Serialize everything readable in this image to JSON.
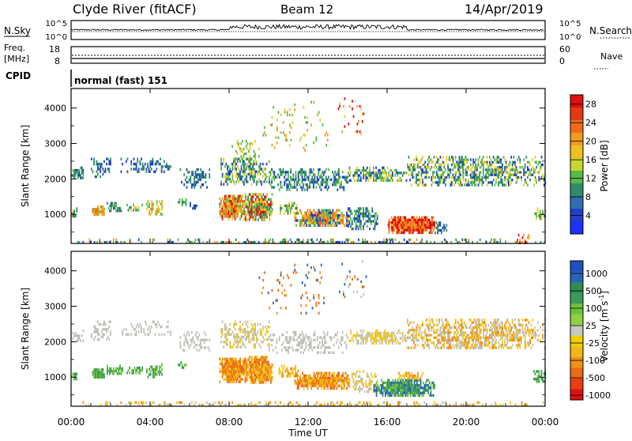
{
  "header": {
    "station": "Clyde River (fitACF)",
    "beam": "Beam 12",
    "date": "14/Apr/2019"
  },
  "top_panels": {
    "nsky_label": "N.Sky",
    "nsearch_label": "N.Search",
    "nsky_ticks": [
      "10^5",
      "10^0"
    ],
    "nsearch_ticks": [
      "10^5",
      "10^0"
    ],
    "freq_label": "Freq.",
    "freq_unit": "[MHz]",
    "freq_ticks": [
      "18",
      "8"
    ],
    "nave_label": "Nave",
    "nave_ticks": [
      "60",
      "0"
    ],
    "cpid_label": "CPID",
    "mode_text": "normal (fast) 151"
  },
  "chart_data": [
    {
      "type": "heatmap",
      "name": "power-panel",
      "ylabel": "Slant Range [km]",
      "yticks": [
        1000,
        2000,
        3000,
        4000
      ],
      "ylim": [
        180,
        4550
      ],
      "xlim_hours": [
        0,
        24
      ],
      "colorbar": {
        "label": "Power [dB]",
        "ticks": [
          "4",
          "8",
          "12",
          "16",
          "20",
          "24",
          "28"
        ],
        "colors": [
          "#2030ff",
          "#2040c8",
          "#2f6fb0",
          "#2f8c6a",
          "#58b84a",
          "#c8d630",
          "#f0c020",
          "#f29a20",
          "#ee6a18",
          "#e33a14",
          "#e01010"
        ]
      }
    },
    {
      "type": "heatmap",
      "name": "velocity-panel",
      "ylabel": "Slant Range [km]",
      "yticks": [
        1000,
        2000,
        3000,
        4000
      ],
      "ylim": [
        180,
        4550
      ],
      "xlim_hours": [
        0,
        24
      ],
      "xlabel": "Time UT",
      "xticks": [
        "00:00",
        "04:00",
        "08:00",
        "12:00",
        "16:00",
        "20:00",
        "00:00"
      ],
      "colorbar": {
        "label": "Velocity [m s",
        "label_sup": "-1",
        "label_end": "]",
        "ticks": [
          "1000",
          "500",
          "100",
          "25",
          "-25",
          "-100",
          "-500",
          "-1000"
        ],
        "colors": [
          "#2050c0",
          "#2a64b8",
          "#2f8c50",
          "#3a9a58",
          "#6cc23a",
          "#8ed040",
          "#c8c8c0",
          "#f0d000",
          "#f0b818",
          "#f09018",
          "#ec6a14",
          "#e84010",
          "#e01010"
        ]
      }
    }
  ]
}
